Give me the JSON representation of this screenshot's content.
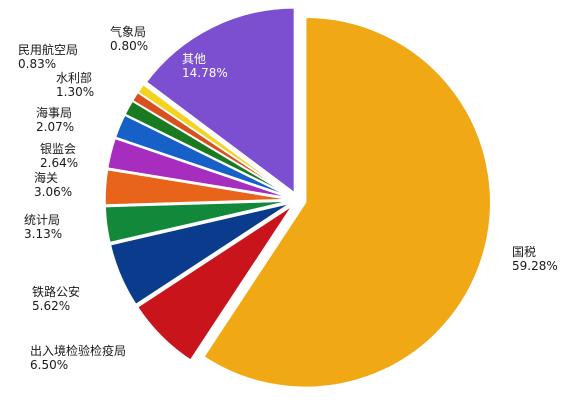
{
  "chart_data": {
    "type": "pie",
    "title": "",
    "categories": [
      "国税",
      "出入境检验检疫局",
      "铁路公安",
      "统计局",
      "海关",
      "银监会",
      "海事局",
      "水利部",
      "民用航空局",
      "气象局",
      "其他"
    ],
    "values": [
      59.28,
      6.5,
      5.62,
      3.13,
      3.06,
      2.64,
      2.07,
      1.3,
      0.83,
      0.8,
      14.78
    ],
    "value_labels": [
      "59.28%",
      "6.50%",
      "5.62%",
      "3.13%",
      "3.06%",
      "2.64%",
      "2.07%",
      "1.30%",
      "0.83%",
      "0.80%",
      "14.78%"
    ],
    "colors": [
      "#F0A814",
      "#C9141C",
      "#0A3B8C",
      "#12893A",
      "#E8641A",
      "#A62DBE",
      "#1660C8",
      "#1A7A22",
      "#D8501E",
      "#F5D21E",
      "#7B4FD0"
    ],
    "exploded": true,
    "legend": "none"
  }
}
